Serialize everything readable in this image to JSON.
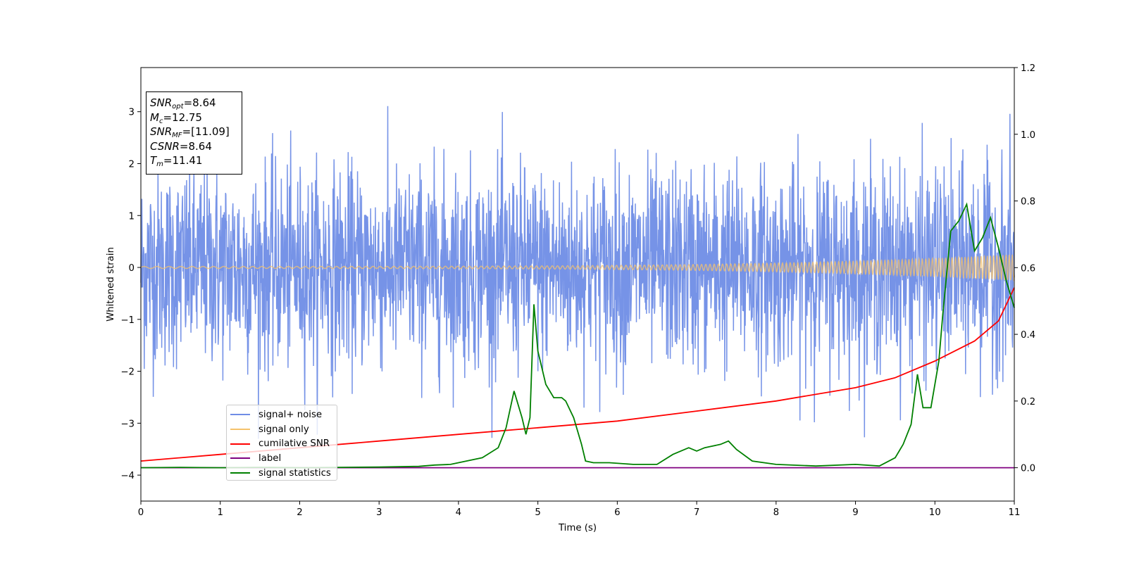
{
  "chart_data": {
    "type": "line",
    "xlabel": "Time (s)",
    "ylabel": "Whitened strain",
    "xlim": [
      0,
      11
    ],
    "ylim": [
      -4.5,
      3.85
    ],
    "y2lim": [
      -0.1,
      1.2
    ],
    "x_ticks": [
      "0",
      "1",
      "2",
      "3",
      "4",
      "5",
      "6",
      "7",
      "8",
      "9",
      "10",
      "11"
    ],
    "y_ticks": [
      "−4",
      "−3",
      "−2",
      "−1",
      "0",
      "1",
      "2",
      "3"
    ],
    "y2_ticks": [
      "0.0",
      "0.2",
      "0.4",
      "0.6",
      "0.8",
      "1.0",
      "1.2"
    ],
    "grid": false,
    "legend_position": "lower-left",
    "info_box": {
      "snr_opt": {
        "symbol": "SNR",
        "sub": "opt",
        "value": "=8.64"
      },
      "mc": {
        "symbol": "M",
        "sub": "c",
        "value": "=12.75"
      },
      "snr_mf": {
        "symbol": "SNR",
        "sub": "MF",
        "value": "=[11.09]"
      },
      "csnr": {
        "symbol": "CSNR",
        "sub": "",
        "value": "=8.64"
      },
      "tm": {
        "symbol": "T",
        "sub": "m",
        "value": "=11.41"
      }
    },
    "series": [
      {
        "name": "signal+ noise",
        "color": "#6f8de6",
        "axis": "left",
        "description": "noisy whitened strain, approx. ±2 with peaks to 3.5"
      },
      {
        "name": "signal only",
        "color": "#f5c26b",
        "axis": "left",
        "description": "chirp with amplitude rising from ~0.02 to ~0.25"
      },
      {
        "name": "cumilative SNR",
        "color": "#ff0000",
        "axis": "right",
        "x": [
          0,
          1,
          2,
          3,
          4,
          5,
          6,
          7,
          8,
          9,
          9.5,
          10,
          10.5,
          10.8,
          11
        ],
        "values": [
          0.02,
          0.04,
          0.06,
          0.08,
          0.1,
          0.12,
          0.14,
          0.17,
          0.2,
          0.24,
          0.27,
          0.32,
          0.38,
          0.44,
          0.54
        ]
      },
      {
        "name": "label",
        "color": "#800080",
        "axis": "right",
        "x": [
          0,
          11
        ],
        "values": [
          0,
          0
        ]
      },
      {
        "name": "signal statistics",
        "color": "#008000",
        "axis": "right",
        "x": [
          0,
          0.5,
          1,
          1.5,
          2,
          2.5,
          3,
          3.5,
          3.7,
          3.9,
          4.1,
          4.3,
          4.5,
          4.6,
          4.7,
          4.8,
          4.85,
          4.9,
          4.95,
          5.0,
          5.1,
          5.2,
          5.3,
          5.35,
          5.45,
          5.55,
          5.6,
          5.7,
          5.9,
          6.2,
          6.5,
          6.7,
          6.9,
          7.0,
          7.1,
          7.3,
          7.4,
          7.5,
          7.7,
          8.0,
          8.5,
          9.0,
          9.3,
          9.5,
          9.6,
          9.7,
          9.78,
          9.85,
          9.95,
          10.05,
          10.1,
          10.2,
          10.3,
          10.4,
          10.5,
          10.6,
          10.7,
          10.8,
          10.9,
          11.0
        ],
        "values": [
          0,
          0.001,
          0,
          0.001,
          0,
          0.001,
          0.002,
          0.004,
          0.008,
          0.01,
          0.02,
          0.03,
          0.06,
          0.12,
          0.23,
          0.15,
          0.1,
          0.15,
          0.49,
          0.35,
          0.25,
          0.21,
          0.21,
          0.2,
          0.15,
          0.07,
          0.02,
          0.015,
          0.015,
          0.01,
          0.01,
          0.04,
          0.06,
          0.05,
          0.06,
          0.07,
          0.08,
          0.055,
          0.02,
          0.01,
          0.005,
          0.01,
          0.005,
          0.03,
          0.07,
          0.13,
          0.28,
          0.18,
          0.18,
          0.32,
          0.46,
          0.71,
          0.74,
          0.79,
          0.65,
          0.69,
          0.75,
          0.66,
          0.56,
          0.48
        ]
      }
    ]
  }
}
